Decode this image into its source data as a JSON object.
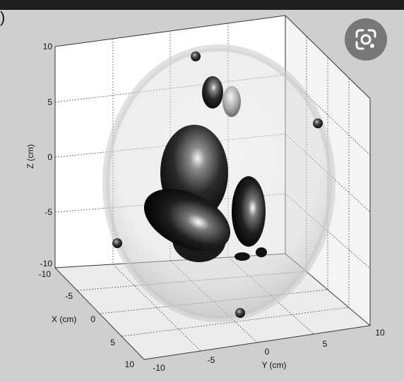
{
  "panel_label": ")",
  "chart_data": {
    "type": "scatter",
    "zlabel": "Z (cm)",
    "xlabel": "X (cm)",
    "ylabel": "Y (cm)",
    "z_ticks": [
      "10",
      "5",
      "0",
      "-5",
      "-10"
    ],
    "x_ticks": [
      "-10",
      "-5",
      "0",
      "5",
      "10"
    ],
    "y_ticks": [
      "-10",
      "-5",
      "0",
      "5",
      "10"
    ],
    "zlim": [
      -10,
      10
    ],
    "xlim": [
      -10,
      10
    ],
    "ylim": [
      -10,
      10
    ],
    "grid": true
  },
  "lens_button": {
    "icon": "google-lens-icon"
  }
}
